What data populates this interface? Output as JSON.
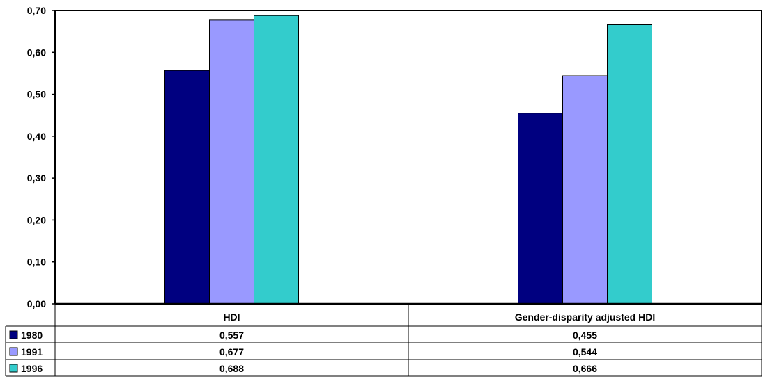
{
  "chart_data": {
    "type": "bar",
    "categories": [
      "HDI",
      "Gender-disparity adjusted HDI"
    ],
    "series": [
      {
        "name": "1980",
        "color": "#000080",
        "values": [
          0.557,
          0.455
        ],
        "labels": [
          "0,557",
          "0,455"
        ]
      },
      {
        "name": "1991",
        "color": "#9999FF",
        "values": [
          0.677,
          0.544
        ],
        "labels": [
          "0,677",
          "0,544"
        ]
      },
      {
        "name": "1996",
        "color": "#33CCCC",
        "values": [
          0.688,
          0.666
        ],
        "labels": [
          "0,688",
          "0,666"
        ]
      }
    ],
    "ylim": [
      0,
      0.7
    ],
    "yticks": [
      0,
      0.1,
      0.2,
      0.3,
      0.4,
      0.5,
      0.6,
      0.7
    ],
    "ytick_labels": [
      "0,00",
      "0,10",
      "0,20",
      "0,30",
      "0,40",
      "0,50",
      "0,60",
      "0,70"
    ],
    "grid": false,
    "legend": "data-table"
  }
}
